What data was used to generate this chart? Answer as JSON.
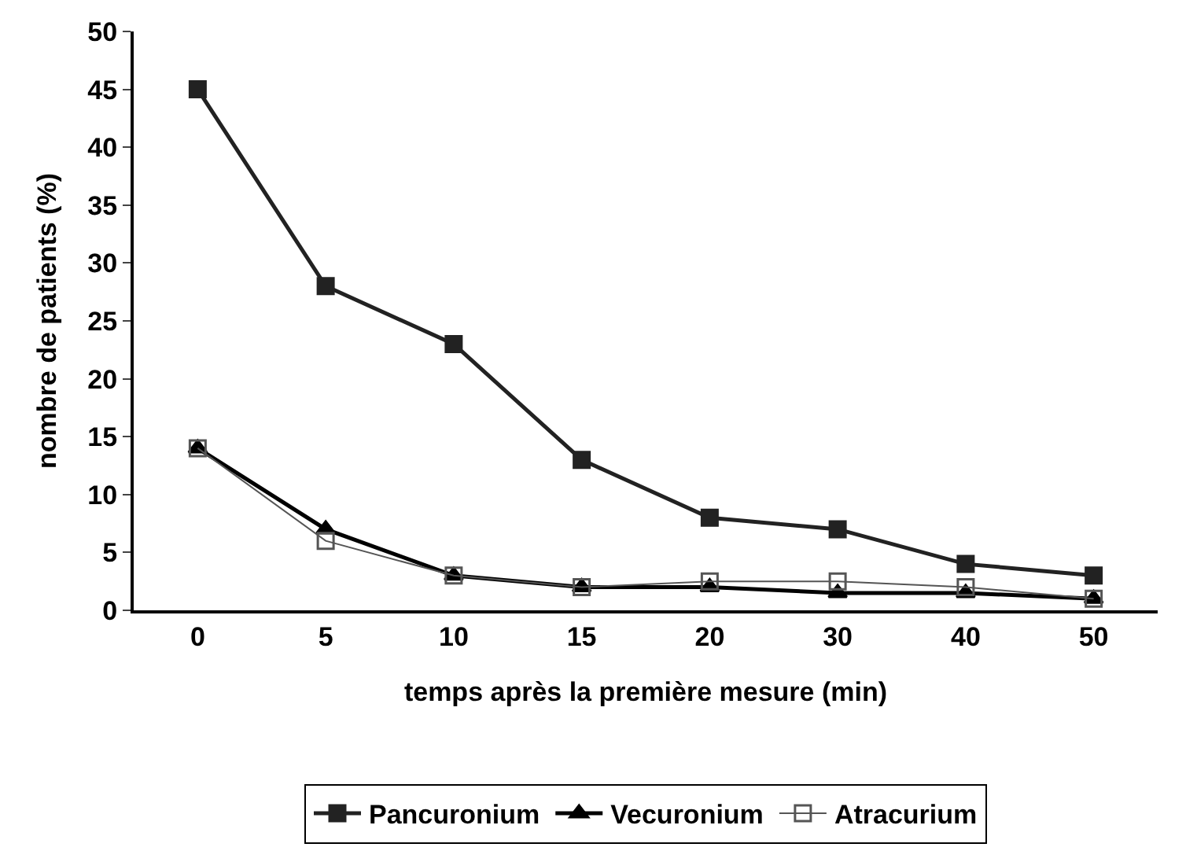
{
  "chart_data": {
    "type": "line",
    "xlabel": "temps après la première mesure (min)",
    "ylabel": "nombre de patients (%)",
    "categories": [
      "0",
      "5",
      "10",
      "15",
      "20",
      "30",
      "40",
      "50"
    ],
    "series": [
      {
        "name": "Pancuronium",
        "color": "#222222",
        "values": [
          45,
          28,
          23,
          13,
          8,
          7,
          4,
          3
        ],
        "marker": "square"
      },
      {
        "name": "Vecuronium",
        "color": "#000000",
        "values": [
          14,
          7,
          3,
          2,
          2,
          1.5,
          1.5,
          1
        ],
        "marker": "triangle"
      },
      {
        "name": "Atracurium",
        "color": "#555555",
        "values": [
          14,
          6,
          3,
          2,
          2.5,
          2.5,
          2,
          1
        ],
        "marker": "square-open"
      }
    ],
    "ylim": [
      0,
      50
    ],
    "yticks": [
      0,
      5,
      10,
      15,
      20,
      25,
      30,
      35,
      40,
      45,
      50
    ],
    "legend": "bottom"
  }
}
